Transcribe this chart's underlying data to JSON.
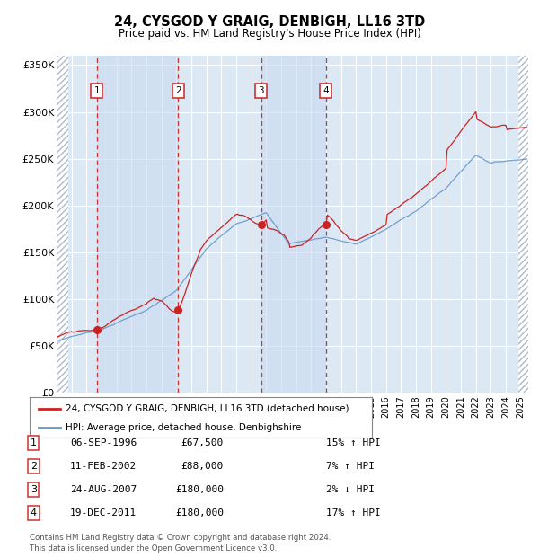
{
  "title": "24, CYSGOD Y GRAIG, DENBIGH, LL16 3TD",
  "subtitle": "Price paid vs. HM Land Registry's House Price Index (HPI)",
  "legend_line1": "24, CYSGOD Y GRAIG, DENBIGH, LL16 3TD (detached house)",
  "legend_line2": "HPI: Average price, detached house, Denbighshire",
  "footer": "Contains HM Land Registry data © Crown copyright and database right 2024.\nThis data is licensed under the Open Government Licence v3.0.",
  "sales": [
    {
      "label": "1",
      "date": "06-SEP-1996",
      "date_num": 1996.68,
      "price": 67500,
      "pct": "15%",
      "dir": "↑"
    },
    {
      "label": "2",
      "date": "11-FEB-2002",
      "date_num": 2002.12,
      "price": 88000,
      "pct": "7%",
      "dir": "↑"
    },
    {
      "label": "3",
      "date": "24-AUG-2007",
      "date_num": 2007.65,
      "price": 180000,
      "pct": "2%",
      "dir": "↓"
    },
    {
      "label": "4",
      "date": "19-DEC-2011",
      "date_num": 2011.97,
      "price": 180000,
      "pct": "17%",
      "dir": "↑"
    }
  ],
  "xmin": 1994.0,
  "xmax": 2025.5,
  "ymin": 0,
  "ymax": 360000,
  "yticks": [
    0,
    50000,
    100000,
    150000,
    200000,
    250000,
    300000,
    350000
  ],
  "hpi_color": "#6699cc",
  "price_color": "#cc2222",
  "background_color": "#ffffff",
  "plot_bg_color": "#dce8f4",
  "grid_color": "#ffffff",
  "sale_vline_color": "#cc3333",
  "shade_color": "#c8daf0",
  "hatch_color": "#bbbbcc",
  "label_box_color": "#cc3333"
}
